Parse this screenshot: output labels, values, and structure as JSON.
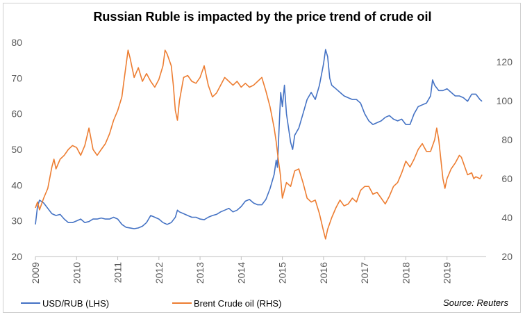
{
  "chart_data": {
    "type": "line",
    "title": "Russian Ruble is impacted by the price trend of crude oil",
    "source": "Source: Reuters",
    "x_ticks": [
      "2009",
      "2010",
      "2011",
      "2012",
      "2013",
      "2014",
      "2015",
      "2016",
      "2017",
      "2018",
      "2019"
    ],
    "left_axis": {
      "ticks": [
        20,
        30,
        40,
        50,
        60,
        70,
        80
      ],
      "ylim": [
        20,
        80
      ]
    },
    "right_axis": {
      "ticks": [
        20,
        40,
        60,
        80,
        100,
        120
      ],
      "ylim": [
        20,
        130
      ]
    },
    "grid": false,
    "legend_position": "bottom-left",
    "series": [
      {
        "name": "USD/RUB (LHS)",
        "axis": "left",
        "color": "#4472C4",
        "points": [
          [
            2009.0,
            29.0
          ],
          [
            2009.05,
            34.0
          ],
          [
            2009.1,
            35.8
          ],
          [
            2009.2,
            35.0
          ],
          [
            2009.3,
            33.5
          ],
          [
            2009.4,
            32.0
          ],
          [
            2009.5,
            31.5
          ],
          [
            2009.6,
            31.8
          ],
          [
            2009.7,
            30.5
          ],
          [
            2009.8,
            29.5
          ],
          [
            2009.9,
            29.5
          ],
          [
            2010.0,
            30.0
          ],
          [
            2010.1,
            30.5
          ],
          [
            2010.2,
            29.5
          ],
          [
            2010.3,
            29.8
          ],
          [
            2010.4,
            30.5
          ],
          [
            2010.5,
            30.5
          ],
          [
            2010.6,
            30.8
          ],
          [
            2010.7,
            30.5
          ],
          [
            2010.8,
            30.5
          ],
          [
            2010.9,
            31.0
          ],
          [
            2011.0,
            30.5
          ],
          [
            2011.1,
            29.0
          ],
          [
            2011.2,
            28.2
          ],
          [
            2011.3,
            28.0
          ],
          [
            2011.4,
            27.8
          ],
          [
            2011.5,
            28.0
          ],
          [
            2011.6,
            28.5
          ],
          [
            2011.7,
            29.5
          ],
          [
            2011.8,
            31.5
          ],
          [
            2011.9,
            31.0
          ],
          [
            2012.0,
            30.5
          ],
          [
            2012.1,
            29.5
          ],
          [
            2012.2,
            29.0
          ],
          [
            2012.3,
            29.5
          ],
          [
            2012.4,
            31.0
          ],
          [
            2012.45,
            33.0
          ],
          [
            2012.5,
            32.5
          ],
          [
            2012.6,
            32.0
          ],
          [
            2012.7,
            31.5
          ],
          [
            2012.8,
            31.0
          ],
          [
            2012.9,
            31.0
          ],
          [
            2013.0,
            30.5
          ],
          [
            2013.1,
            30.3
          ],
          [
            2013.2,
            31.0
          ],
          [
            2013.3,
            31.5
          ],
          [
            2013.4,
            31.8
          ],
          [
            2013.5,
            32.5
          ],
          [
            2013.6,
            33.0
          ],
          [
            2013.7,
            33.5
          ],
          [
            2013.8,
            32.5
          ],
          [
            2013.9,
            33.0
          ],
          [
            2014.0,
            34.0
          ],
          [
            2014.1,
            35.5
          ],
          [
            2014.2,
            36.0
          ],
          [
            2014.3,
            35.0
          ],
          [
            2014.4,
            34.5
          ],
          [
            2014.5,
            34.5
          ],
          [
            2014.6,
            36.0
          ],
          [
            2014.7,
            39.0
          ],
          [
            2014.8,
            43.0
          ],
          [
            2014.85,
            47.0
          ],
          [
            2014.88,
            45.0
          ],
          [
            2014.92,
            56.0
          ],
          [
            2014.96,
            66.0
          ],
          [
            2015.0,
            62.0
          ],
          [
            2015.05,
            68.0
          ],
          [
            2015.1,
            60.0
          ],
          [
            2015.2,
            52.0
          ],
          [
            2015.25,
            50.0
          ],
          [
            2015.3,
            54.0
          ],
          [
            2015.4,
            56.0
          ],
          [
            2015.5,
            60.0
          ],
          [
            2015.6,
            64.0
          ],
          [
            2015.7,
            66.0
          ],
          [
            2015.8,
            64.0
          ],
          [
            2015.9,
            68.0
          ],
          [
            2016.0,
            74.0
          ],
          [
            2016.05,
            78.0
          ],
          [
            2016.1,
            76.0
          ],
          [
            2016.15,
            70.0
          ],
          [
            2016.2,
            68.0
          ],
          [
            2016.3,
            67.0
          ],
          [
            2016.4,
            66.0
          ],
          [
            2016.5,
            65.0
          ],
          [
            2016.6,
            64.5
          ],
          [
            2016.7,
            64.0
          ],
          [
            2016.8,
            64.0
          ],
          [
            2016.9,
            63.0
          ],
          [
            2017.0,
            60.0
          ],
          [
            2017.1,
            58.0
          ],
          [
            2017.2,
            57.0
          ],
          [
            2017.3,
            57.5
          ],
          [
            2017.4,
            58.0
          ],
          [
            2017.5,
            59.0
          ],
          [
            2017.6,
            59.5
          ],
          [
            2017.7,
            58.5
          ],
          [
            2017.8,
            58.0
          ],
          [
            2017.9,
            58.5
          ],
          [
            2018.0,
            57.0
          ],
          [
            2018.1,
            57.0
          ],
          [
            2018.2,
            60.0
          ],
          [
            2018.3,
            62.0
          ],
          [
            2018.4,
            62.5
          ],
          [
            2018.5,
            63.0
          ],
          [
            2018.6,
            65.0
          ],
          [
            2018.65,
            69.5
          ],
          [
            2018.7,
            68.0
          ],
          [
            2018.8,
            66.5
          ],
          [
            2018.9,
            66.5
          ],
          [
            2019.0,
            67.0
          ],
          [
            2019.1,
            66.0
          ],
          [
            2019.2,
            65.0
          ],
          [
            2019.3,
            65.0
          ],
          [
            2019.4,
            64.5
          ],
          [
            2019.5,
            63.5
          ],
          [
            2019.6,
            65.5
          ],
          [
            2019.7,
            65.5
          ],
          [
            2019.8,
            64.0
          ],
          [
            2019.85,
            63.5
          ]
        ]
      },
      {
        "name": "Brent Crude oil (RHS)",
        "axis": "right",
        "color": "#ED7D31",
        "points": [
          [
            2009.0,
            45.0
          ],
          [
            2009.05,
            48.0
          ],
          [
            2009.1,
            44.0
          ],
          [
            2009.2,
            50.0
          ],
          [
            2009.3,
            55.0
          ],
          [
            2009.4,
            66.0
          ],
          [
            2009.45,
            70.0
          ],
          [
            2009.5,
            65.0
          ],
          [
            2009.6,
            70.0
          ],
          [
            2009.7,
            72.0
          ],
          [
            2009.8,
            75.0
          ],
          [
            2009.9,
            77.0
          ],
          [
            2010.0,
            76.0
          ],
          [
            2010.1,
            72.0
          ],
          [
            2010.2,
            77.0
          ],
          [
            2010.3,
            86.0
          ],
          [
            2010.4,
            75.0
          ],
          [
            2010.5,
            72.0
          ],
          [
            2010.6,
            75.0
          ],
          [
            2010.7,
            78.0
          ],
          [
            2010.8,
            83.0
          ],
          [
            2010.9,
            90.0
          ],
          [
            2011.0,
            95.0
          ],
          [
            2011.1,
            102.0
          ],
          [
            2011.15,
            110.0
          ],
          [
            2011.2,
            118.0
          ],
          [
            2011.25,
            126.0
          ],
          [
            2011.3,
            122.0
          ],
          [
            2011.4,
            112.0
          ],
          [
            2011.5,
            117.0
          ],
          [
            2011.6,
            110.0
          ],
          [
            2011.7,
            114.0
          ],
          [
            2011.8,
            110.0
          ],
          [
            2011.9,
            107.0
          ],
          [
            2012.0,
            111.0
          ],
          [
            2012.1,
            118.0
          ],
          [
            2012.15,
            126.0
          ],
          [
            2012.2,
            124.0
          ],
          [
            2012.3,
            118.0
          ],
          [
            2012.35,
            108.0
          ],
          [
            2012.4,
            95.0
          ],
          [
            2012.45,
            90.0
          ],
          [
            2012.5,
            100.0
          ],
          [
            2012.6,
            112.0
          ],
          [
            2012.7,
            113.0
          ],
          [
            2012.8,
            110.0
          ],
          [
            2012.9,
            109.0
          ],
          [
            2013.0,
            112.0
          ],
          [
            2013.1,
            118.0
          ],
          [
            2013.2,
            108.0
          ],
          [
            2013.3,
            102.0
          ],
          [
            2013.4,
            104.0
          ],
          [
            2013.5,
            108.0
          ],
          [
            2013.6,
            112.0
          ],
          [
            2013.7,
            110.0
          ],
          [
            2013.8,
            108.0
          ],
          [
            2013.9,
            110.0
          ],
          [
            2014.0,
            107.0
          ],
          [
            2014.1,
            109.0
          ],
          [
            2014.2,
            107.0
          ],
          [
            2014.3,
            108.0
          ],
          [
            2014.4,
            110.0
          ],
          [
            2014.5,
            112.0
          ],
          [
            2014.6,
            105.0
          ],
          [
            2014.7,
            97.0
          ],
          [
            2014.8,
            86.0
          ],
          [
            2014.85,
            79.0
          ],
          [
            2014.9,
            70.0
          ],
          [
            2014.95,
            62.0
          ],
          [
            2015.0,
            50.0
          ],
          [
            2015.1,
            58.0
          ],
          [
            2015.2,
            56.0
          ],
          [
            2015.3,
            64.0
          ],
          [
            2015.4,
            65.0
          ],
          [
            2015.5,
            58.0
          ],
          [
            2015.6,
            50.0
          ],
          [
            2015.7,
            48.0
          ],
          [
            2015.8,
            49.0
          ],
          [
            2015.9,
            42.0
          ],
          [
            2016.0,
            33.0
          ],
          [
            2016.05,
            29.0
          ],
          [
            2016.1,
            34.0
          ],
          [
            2016.2,
            40.0
          ],
          [
            2016.3,
            45.0
          ],
          [
            2016.4,
            49.0
          ],
          [
            2016.5,
            46.0
          ],
          [
            2016.6,
            47.0
          ],
          [
            2016.7,
            50.0
          ],
          [
            2016.8,
            48.0
          ],
          [
            2016.9,
            54.0
          ],
          [
            2017.0,
            56.0
          ],
          [
            2017.1,
            56.0
          ],
          [
            2017.2,
            52.0
          ],
          [
            2017.3,
            53.0
          ],
          [
            2017.4,
            50.0
          ],
          [
            2017.5,
            47.0
          ],
          [
            2017.6,
            51.0
          ],
          [
            2017.7,
            56.0
          ],
          [
            2017.8,
            58.0
          ],
          [
            2017.9,
            63.0
          ],
          [
            2018.0,
            69.0
          ],
          [
            2018.1,
            66.0
          ],
          [
            2018.2,
            70.0
          ],
          [
            2018.3,
            75.0
          ],
          [
            2018.4,
            78.0
          ],
          [
            2018.5,
            74.0
          ],
          [
            2018.6,
            74.0
          ],
          [
            2018.7,
            80.0
          ],
          [
            2018.75,
            86.0
          ],
          [
            2018.8,
            80.0
          ],
          [
            2018.85,
            70.0
          ],
          [
            2018.9,
            60.0
          ],
          [
            2018.95,
            55.0
          ],
          [
            2019.0,
            60.0
          ],
          [
            2019.1,
            65.0
          ],
          [
            2019.2,
            68.0
          ],
          [
            2019.3,
            72.0
          ],
          [
            2019.35,
            71.0
          ],
          [
            2019.4,
            68.0
          ],
          [
            2019.5,
            62.0
          ],
          [
            2019.6,
            63.0
          ],
          [
            2019.65,
            60.0
          ],
          [
            2019.7,
            61.0
          ],
          [
            2019.8,
            60.0
          ],
          [
            2019.85,
            62.0
          ]
        ]
      }
    ]
  }
}
